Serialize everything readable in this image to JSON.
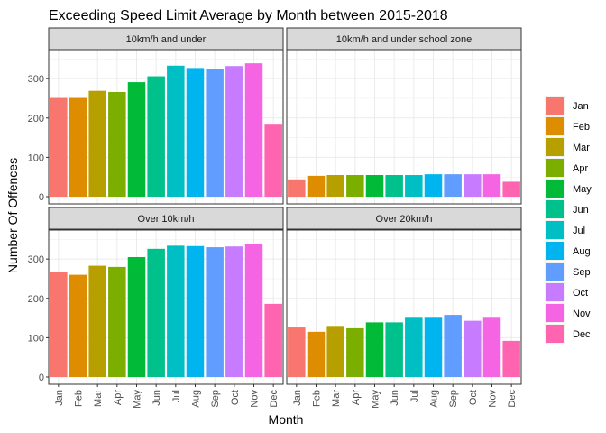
{
  "chart_data": {
    "type": "bar",
    "title": "Exceeding Speed Limit Average by Month between 2015-2018",
    "xlabel": "Month",
    "ylabel": "Number Of Offences",
    "ylim": [
      0,
      360
    ],
    "yticks": [
      0,
      100,
      200,
      300
    ],
    "grid": true,
    "legend_position": "right",
    "categories": [
      "Jan",
      "Feb",
      "Mar",
      "Apr",
      "May",
      "Jun",
      "Jul",
      "Aug",
      "Sep",
      "Oct",
      "Nov",
      "Dec"
    ],
    "colors": [
      "#F8766D",
      "#DE8C00",
      "#B79F00",
      "#7CAE00",
      "#00BA38",
      "#00C08B",
      "#00BFC4",
      "#00B4F0",
      "#619CFF",
      "#C77CFF",
      "#F564E3",
      "#FF64B0"
    ],
    "panels": [
      {
        "name": "10km/h and under",
        "values": [
          251,
          251,
          269,
          266,
          291,
          306,
          333,
          327,
          324,
          332,
          339,
          183
        ]
      },
      {
        "name": "10km/h and under school zone",
        "values": [
          44,
          53,
          55,
          55,
          55,
          55,
          55,
          57,
          57,
          57,
          57,
          38
        ]
      },
      {
        "name": "Over 10km/h",
        "values": [
          266,
          260,
          283,
          280,
          305,
          326,
          334,
          333,
          330,
          332,
          339,
          186
        ]
      },
      {
        "name": "Over 20km/h",
        "values": [
          126,
          115,
          130,
          124,
          139,
          139,
          153,
          153,
          158,
          143,
          153,
          92
        ]
      }
    ]
  }
}
